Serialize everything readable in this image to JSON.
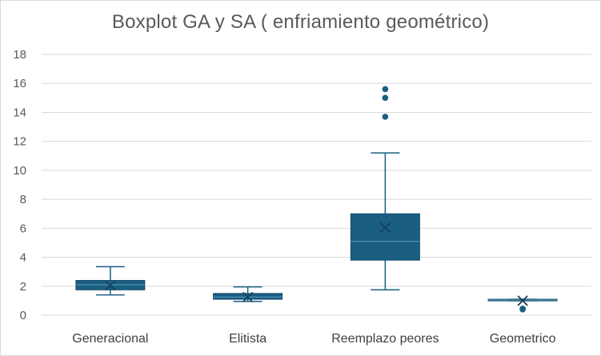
{
  "chart_data": {
    "type": "boxplot",
    "title": "Boxplot GA y SA ( enfriamiento geométrico)",
    "xlabel": "",
    "ylabel": "",
    "ylim": [
      0,
      18
    ],
    "yticks": [
      0,
      2,
      4,
      6,
      8,
      10,
      12,
      14,
      16,
      18
    ],
    "grid": true,
    "legend": "none",
    "color": "#1a5e82",
    "categories": [
      "Generacional",
      "Elitista",
      "Reemplazo peores",
      "Geometrico"
    ],
    "boxes": [
      {
        "name": "Generacional",
        "whisker_low": 1.4,
        "q1": 1.75,
        "median": 2.1,
        "q3": 2.4,
        "whisker_high": 3.35,
        "mean": 2.05,
        "outliers": []
      },
      {
        "name": "Elitista",
        "whisker_low": 0.95,
        "q1": 1.1,
        "median": 1.25,
        "q3": 1.5,
        "whisker_high": 1.95,
        "mean": 1.25,
        "outliers": []
      },
      {
        "name": "Reemplazo peores",
        "whisker_low": 1.75,
        "q1": 3.8,
        "median": 5.1,
        "q3": 7.0,
        "whisker_high": 11.2,
        "mean": 6.05,
        "outliers": [
          13.7,
          15.0,
          15.6
        ]
      },
      {
        "name": "Geometrico",
        "whisker_low": 1.0,
        "q1": 1.0,
        "median": 1.05,
        "q3": 1.1,
        "whisker_high": 1.1,
        "mean": 1.0,
        "outliers": [
          0.45,
          0.4
        ]
      }
    ]
  }
}
